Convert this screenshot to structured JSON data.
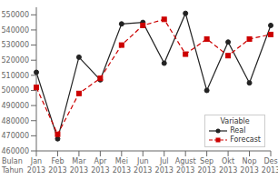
{
  "chart_data": {
    "type": "line",
    "categories": [
      "Jan",
      "Feb",
      "Mar",
      "Apr",
      "Mei",
      "Jun",
      "Jul",
      "Agust",
      "Sep",
      "Okt",
      "Nop",
      "Des"
    ],
    "xlabel": "Bulan",
    "secondary_categories": [
      "2013",
      "2013",
      "2013",
      "2013",
      "2013",
      "2013",
      "2013",
      "2013",
      "2013",
      "2013",
      "2013",
      "2013"
    ],
    "secondary_xlabel": "Tahun",
    "series": [
      {
        "name": "Real",
        "color": "#222222",
        "marker": "circle",
        "line_style": "solid",
        "values": [
          512000,
          468000,
          522000,
          507000,
          544000,
          545000,
          518000,
          551000,
          500000,
          532000,
          505000,
          543000
        ]
      },
      {
        "name": "Forecast",
        "color": "#cc0000",
        "marker": "square",
        "line_style": "dashed",
        "values": [
          502000,
          471000,
          498000,
          508000,
          530000,
          543000,
          547000,
          524000,
          534000,
          523000,
          534000,
          537000
        ]
      }
    ],
    "ylim": [
      460000,
      555000
    ],
    "yticks": [
      460000,
      470000,
      480000,
      490000,
      500000,
      510000,
      520000,
      530000,
      540000,
      550000
    ],
    "grid": false,
    "legend": "lower right",
    "legend_title": "Variable"
  }
}
